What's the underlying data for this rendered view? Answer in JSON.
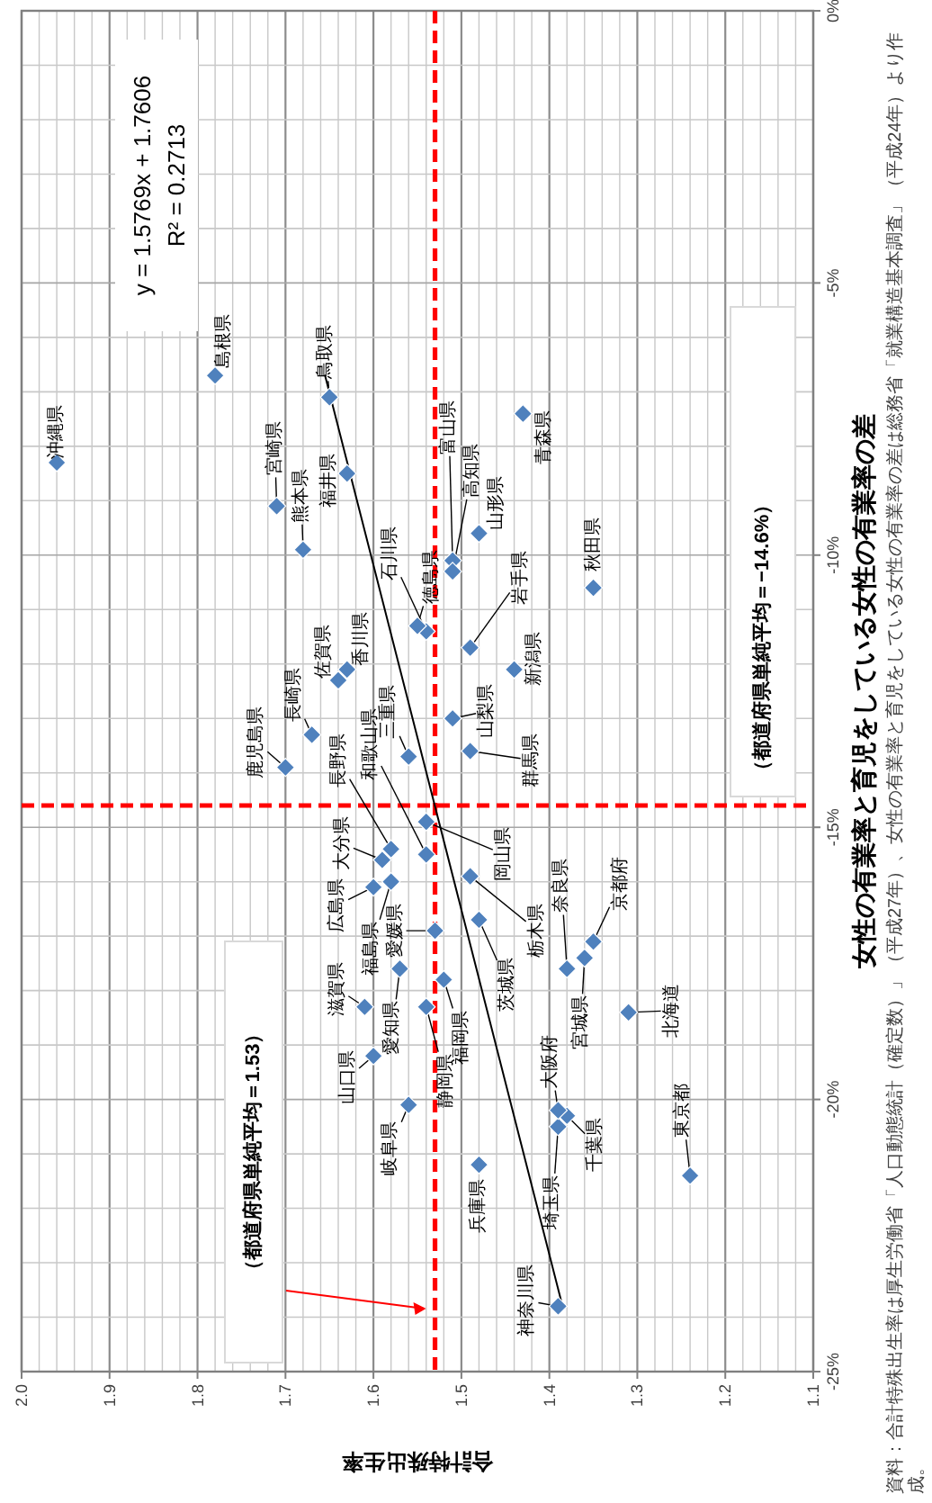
{
  "chart_data": {
    "type": "scatter",
    "xlabel": "合計特殊出生率",
    "ylabel": "女性の有業率と育児をしている女性の有業率の差",
    "xlim": [
      2.0,
      1.1
    ],
    "ylim": [
      -25,
      0
    ],
    "xticks": [
      {
        "value": 2.0,
        "label": "2.0"
      },
      {
        "value": 1.98,
        "label": null
      },
      {
        "value": 1.96,
        "label": null
      },
      {
        "value": 1.94,
        "label": null
      },
      {
        "value": 1.92,
        "label": null
      },
      {
        "value": 1.9,
        "label": "1.9"
      },
      {
        "value": 1.88,
        "label": null
      },
      {
        "value": 1.86,
        "label": null
      },
      {
        "value": 1.84,
        "label": null
      },
      {
        "value": 1.82,
        "label": null
      },
      {
        "value": 1.8,
        "label": "1.8"
      },
      {
        "value": 1.78,
        "label": null
      },
      {
        "value": 1.76,
        "label": null
      },
      {
        "value": 1.74,
        "label": null
      },
      {
        "value": 1.72,
        "label": null
      },
      {
        "value": 1.7,
        "label": "1.7"
      },
      {
        "value": 1.68,
        "label": null
      },
      {
        "value": 1.66,
        "label": null
      },
      {
        "value": 1.64,
        "label": null
      },
      {
        "value": 1.62,
        "label": null
      },
      {
        "value": 1.6,
        "label": "1.6"
      },
      {
        "value": 1.58,
        "label": null
      },
      {
        "value": 1.56,
        "label": null
      },
      {
        "value": 1.54,
        "label": null
      },
      {
        "value": 1.52,
        "label": null
      },
      {
        "value": 1.5,
        "label": "1.5"
      },
      {
        "value": 1.48,
        "label": null
      },
      {
        "value": 1.46,
        "label": null
      },
      {
        "value": 1.44,
        "label": null
      },
      {
        "value": 1.42,
        "label": null
      },
      {
        "value": 1.4,
        "label": "1.4"
      },
      {
        "value": 1.38,
        "label": null
      },
      {
        "value": 1.36,
        "label": null
      },
      {
        "value": 1.34,
        "label": null
      },
      {
        "value": 1.32,
        "label": null
      },
      {
        "value": 1.3,
        "label": "1.3"
      },
      {
        "value": 1.28,
        "label": null
      },
      {
        "value": 1.26,
        "label": null
      },
      {
        "value": 1.24,
        "label": null
      },
      {
        "value": 1.22,
        "label": null
      },
      {
        "value": 1.2,
        "label": "1.2"
      },
      {
        "value": 1.18,
        "label": null
      },
      {
        "value": 1.16,
        "label": null
      },
      {
        "value": 1.14,
        "label": null
      },
      {
        "value": 1.12,
        "label": null
      },
      {
        "value": 1.1,
        "label": "1.1"
      }
    ],
    "yticks": [
      {
        "value": -25,
        "label": "-25%"
      },
      {
        "value": -24,
        "label": null
      },
      {
        "value": -23,
        "label": null
      },
      {
        "value": -22,
        "label": null
      },
      {
        "value": -21,
        "label": null
      },
      {
        "value": -20,
        "label": "-20%"
      },
      {
        "value": -19,
        "label": null
      },
      {
        "value": -18,
        "label": null
      },
      {
        "value": -17,
        "label": null
      },
      {
        "value": -16,
        "label": null
      },
      {
        "value": -15,
        "label": "-15%"
      },
      {
        "value": -14,
        "label": null
      },
      {
        "value": -13,
        "label": null
      },
      {
        "value": -12,
        "label": null
      },
      {
        "value": -11,
        "label": null
      },
      {
        "value": -10,
        "label": "-10%"
      },
      {
        "value": -9,
        "label": null
      },
      {
        "value": -8,
        "label": null
      },
      {
        "value": -7,
        "label": null
      },
      {
        "value": -6,
        "label": null
      },
      {
        "value": -5,
        "label": "-5%"
      },
      {
        "value": -4,
        "label": null
      },
      {
        "value": -3,
        "label": null
      },
      {
        "value": -2,
        "label": null
      },
      {
        "value": -1,
        "label": null
      },
      {
        "value": 0,
        "label": "0%"
      }
    ],
    "grid": true,
    "series": [
      {
        "type": "line",
        "marker": "none",
        "color": "#000000",
        "x": [
          1.655,
          1.385
        ],
        "values": [
          -6.7,
          -23.8
        ]
      },
      {
        "marker": "diamond",
        "color": "#4f81bd",
        "x": [
          1.31,
          1.43,
          1.49,
          1.36,
          1.35,
          1.48,
          1.58,
          1.48,
          1.49,
          1.49,
          1.39,
          1.38,
          1.24,
          1.39,
          1.44,
          1.51,
          1.54,
          1.63,
          1.51,
          1.58,
          1.56,
          1.54,
          1.57,
          1.56,
          1.61,
          1.35,
          1.39,
          1.48,
          1.38,
          1.54,
          1.65,
          1.78,
          1.54,
          1.6,
          1.6,
          1.55,
          1.63,
          1.53,
          1.51,
          1.52,
          1.64,
          1.67,
          1.68,
          1.59,
          1.71,
          1.7,
          1.96
        ],
        "values": [
          -18.4,
          -7.4,
          -11.7,
          -17.4,
          -10.6,
          -9.6,
          -16.0,
          -16.7,
          -15.9,
          -13.6,
          -20.5,
          -20.3,
          -21.4,
          -23.8,
          -12.1,
          -10.1,
          -11.4,
          -8.5,
          -13.0,
          -15.4,
          -20.1,
          -18.3,
          -17.6,
          -13.7,
          -18.3,
          -17.1,
          -20.2,
          -21.2,
          -17.6,
          -15.5,
          -7.1,
          -6.7,
          -14.9,
          -16.1,
          -19.2,
          -11.3,
          -12.1,
          -16.9,
          -10.3,
          -17.8,
          -12.3,
          -13.3,
          -9.9,
          -15.6,
          -9.1,
          -13.9,
          -8.3
        ]
      }
    ],
    "ref_lines": [
      {
        "axis": "y",
        "value": -14.6,
        "label": "（都道府県単純平均＝−14.6%）",
        "color": "#ff0000",
        "line_style": "dashed"
      },
      {
        "axis": "x",
        "value": 1.53,
        "label": "（都道府県単純平均＝1.53）",
        "color": "#ff0000",
        "line_style": "dashed"
      }
    ],
    "annotations": [
      "y = 1.5769x + 1.7606",
      "R² = 0.2713",
      "資料：合計特殊出生率は厚生労働省「人口動態統計（確定数）」（平成27年）、女性の有業率と育児をしている女性の有業率の差は総務省「就業構造基本調査」（平成24年）より作成。",
      {
        "text": "北海道",
        "x": 1.31,
        "y": -18.4
      },
      {
        "text": "青森県",
        "x": 1.43,
        "y": -7.4
      },
      {
        "text": "岩手県",
        "x": 1.49,
        "y": -11.7
      },
      {
        "text": "宮城県",
        "x": 1.36,
        "y": -17.4
      },
      {
        "text": "秋田県",
        "x": 1.35,
        "y": -10.6
      },
      {
        "text": "山形県",
        "x": 1.48,
        "y": -9.6
      },
      {
        "text": "福島県",
        "x": 1.58,
        "y": -16.0
      },
      {
        "text": "茨城県",
        "x": 1.48,
        "y": -16.7
      },
      {
        "text": "栃木県",
        "x": 1.49,
        "y": -15.9
      },
      {
        "text": "群馬県",
        "x": 1.49,
        "y": -13.6
      },
      {
        "text": "埼玉県",
        "x": 1.39,
        "y": -20.5
      },
      {
        "text": "千葉県",
        "x": 1.38,
        "y": -20.3
      },
      {
        "text": "東京都",
        "x": 1.24,
        "y": -21.4
      },
      {
        "text": "神奈川県",
        "x": 1.39,
        "y": -23.8
      },
      {
        "text": "新潟県",
        "x": 1.44,
        "y": -12.1
      },
      {
        "text": "富山県",
        "x": 1.51,
        "y": -10.1
      },
      {
        "text": "石川県",
        "x": 1.54,
        "y": -11.4
      },
      {
        "text": "福井県",
        "x": 1.63,
        "y": -8.5
      },
      {
        "text": "山梨県",
        "x": 1.51,
        "y": -13.0
      },
      {
        "text": "長野県",
        "x": 1.58,
        "y": -15.4
      },
      {
        "text": "岐阜県",
        "x": 1.56,
        "y": -20.1
      },
      {
        "text": "静岡県",
        "x": 1.54,
        "y": -18.3
      },
      {
        "text": "愛知県",
        "x": 1.57,
        "y": -17.6
      },
      {
        "text": "三重県",
        "x": 1.56,
        "y": -13.7
      },
      {
        "text": "滋賀県",
        "x": 1.61,
        "y": -18.3
      },
      {
        "text": "京都府",
        "x": 1.35,
        "y": -17.1
      },
      {
        "text": "大阪府",
        "x": 1.39,
        "y": -20.2
      },
      {
        "text": "兵庫県",
        "x": 1.48,
        "y": -21.2
      },
      {
        "text": "奈良県",
        "x": 1.38,
        "y": -17.6
      },
      {
        "text": "和歌山県",
        "x": 1.54,
        "y": -15.5
      },
      {
        "text": "鳥取県",
        "x": 1.65,
        "y": -7.1
      },
      {
        "text": "島根県",
        "x": 1.78,
        "y": -6.7
      },
      {
        "text": "岡山県",
        "x": 1.54,
        "y": -14.9
      },
      {
        "text": "広島県",
        "x": 1.6,
        "y": -16.1
      },
      {
        "text": "山口県",
        "x": 1.6,
        "y": -19.2
      },
      {
        "text": "徳島県",
        "x": 1.55,
        "y": -11.3
      },
      {
        "text": "香川県",
        "x": 1.63,
        "y": -12.1
      },
      {
        "text": "愛媛県",
        "x": 1.53,
        "y": -16.9
      },
      {
        "text": "高知県",
        "x": 1.51,
        "y": -10.3
      },
      {
        "text": "福岡県",
        "x": 1.52,
        "y": -17.8
      },
      {
        "text": "佐賀県",
        "x": 1.64,
        "y": -12.3
      },
      {
        "text": "長崎県",
        "x": 1.67,
        "y": -13.3
      },
      {
        "text": "熊本県",
        "x": 1.68,
        "y": -9.9
      },
      {
        "text": "大分県",
        "x": 1.59,
        "y": -15.6
      },
      {
        "text": "宮崎県",
        "x": 1.71,
        "y": -9.1
      },
      {
        "text": "鹿児島県",
        "x": 1.7,
        "y": -13.9
      },
      {
        "text": "沖縄県",
        "x": 1.96,
        "y": -8.3
      }
    ]
  }
}
